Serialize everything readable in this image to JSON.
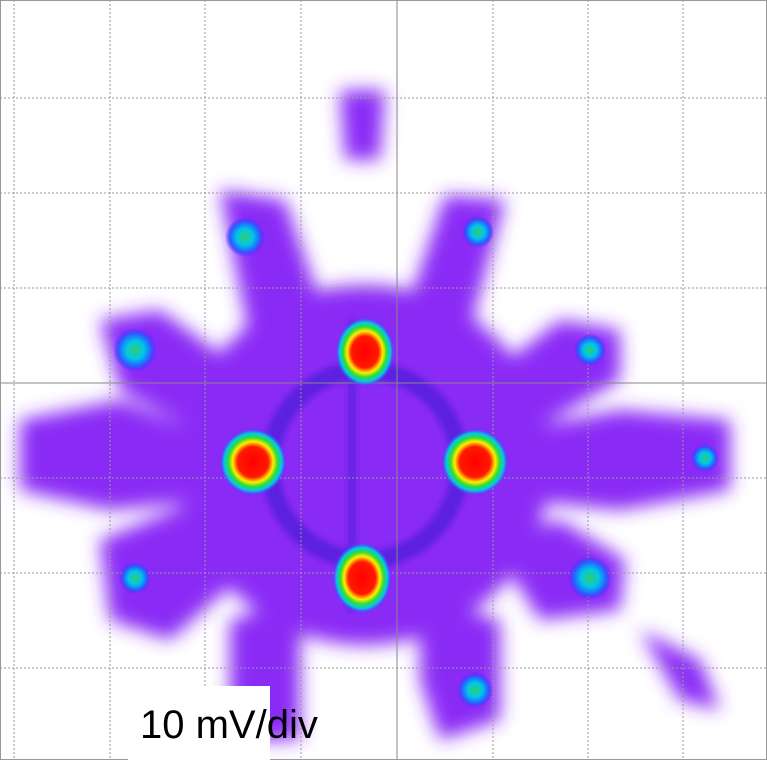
{
  "label": "10 mV/div"
}
